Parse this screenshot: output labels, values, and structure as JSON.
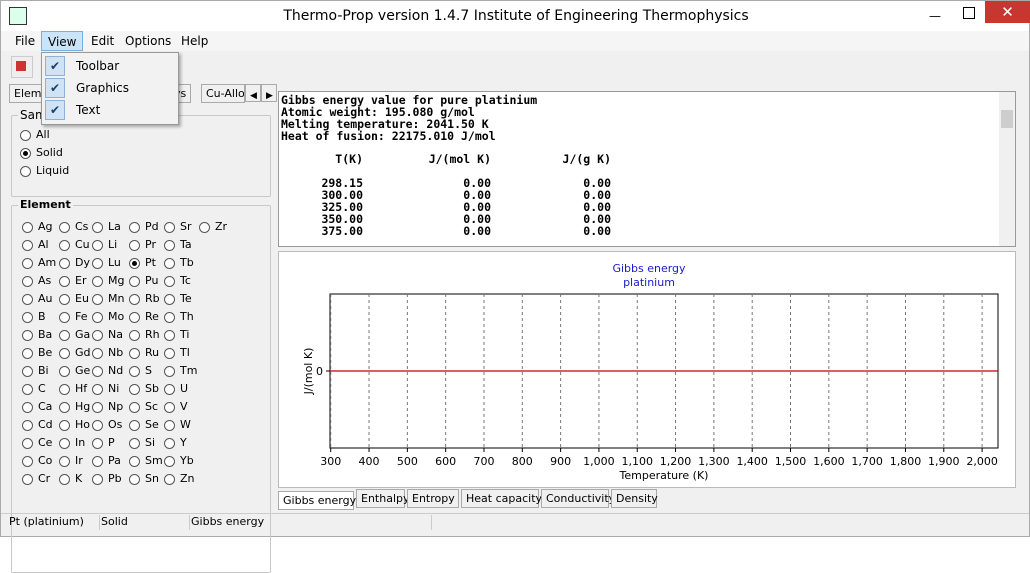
{
  "window": {
    "title": "Thermo-Prop version 1.4.7  Institute of Engineering Thermophysics"
  },
  "menu": [
    "File",
    "View",
    "Edit",
    "Options",
    "Help"
  ],
  "view_menu": [
    "Toolbar",
    "Graphics",
    "Text"
  ],
  "left_tabs": [
    "Eleme",
    "ys",
    "Cu-Allo"
  ],
  "sample": {
    "title": "Sam",
    "options": [
      "All",
      "Solid",
      "Liquid"
    ]
  },
  "element": {
    "title": "Element",
    "rows": [
      [
        "Ag",
        "Cs",
        "La",
        "Pd",
        "Sr",
        "Zr"
      ],
      [
        "Al",
        "Cu",
        "Li",
        "Pr",
        "Ta"
      ],
      [
        "Am",
        "Dy",
        "Lu",
        "Pt",
        "Tb"
      ],
      [
        "As",
        "Er",
        "Mg",
        "Pu",
        "Tc"
      ],
      [
        "Au",
        "Eu",
        "Mn",
        "Rb",
        "Te"
      ],
      [
        "B",
        "Fe",
        "Mo",
        "Re",
        "Th"
      ],
      [
        "Ba",
        "Ga",
        "Na",
        "Rh",
        "Ti"
      ],
      [
        "Be",
        "Gd",
        "Nb",
        "Ru",
        "Tl"
      ],
      [
        "Bi",
        "Ge",
        "Nd",
        "S",
        "Tm"
      ],
      [
        "C",
        "Hf",
        "Ni",
        "Sb",
        "U"
      ],
      [
        "Ca",
        "Hg",
        "Np",
        "Sc",
        "V"
      ],
      [
        "Cd",
        "Ho",
        "Os",
        "Se",
        "W"
      ],
      [
        "Ce",
        "In",
        "P",
        "Si",
        "Y"
      ],
      [
        "Co",
        "Ir",
        "Pa",
        "Sm",
        "Yb"
      ],
      [
        "Cr",
        "K",
        "Pb",
        "Sn",
        "Zn"
      ]
    ]
  },
  "text": {
    "header_lines": [
      "Gibbs energy value for pure platinium",
      "Atomic weight: 195.080 g/mol",
      "Melting temperature: 2041.50 K",
      "Heat of fusion: 22175.010 J/mol"
    ],
    "columns": [
      "T(K)",
      "J/(mol K)",
      "J/(g K)"
    ],
    "rows": [
      [
        "298.15",
        "0.00",
        "0.00"
      ],
      [
        "300.00",
        "0.00",
        "0.00"
      ],
      [
        "325.00",
        "0.00",
        "0.00"
      ],
      [
        "350.00",
        "0.00",
        "0.00"
      ],
      [
        "375.00",
        "0.00",
        "0.00"
      ]
    ]
  },
  "chart_data": {
    "type": "line",
    "title": "Gibbs energy",
    "subtitle": "platinium",
    "x_label": "Temperature (K)",
    "y_label": "J/(mol K)",
    "x": [
      298.15,
      2041.5
    ],
    "series": [
      {
        "name": "platinium",
        "color": "#c00000",
        "values": [
          0,
          0
        ]
      }
    ],
    "xlim": [
      298.15,
      2041.5
    ],
    "ylim": [
      -1,
      1
    ],
    "xticks": [
      300,
      400,
      500,
      600,
      700,
      800,
      900,
      {
        "value": 1000,
        "label": "1,000"
      },
      {
        "value": 1100,
        "label": "1,100"
      },
      {
        "value": 1200,
        "label": "1,200"
      },
      {
        "value": 1300,
        "label": "1,300"
      },
      {
        "value": 1400,
        "label": "1,400"
      },
      {
        "value": 1500,
        "label": "1,500"
      },
      {
        "value": 1600,
        "label": "1,600"
      },
      {
        "value": 1700,
        "label": "1,700"
      },
      {
        "value": 1800,
        "label": "1,800"
      },
      {
        "value": 1900,
        "label": "1,900"
      },
      {
        "value": 2000,
        "label": "2,000"
      }
    ],
    "yticks": [
      0
    ],
    "grid": true
  },
  "bottom_tabs": [
    "Gibbs energy",
    "Enthalpy",
    "Entropy",
    "Heat capacity",
    "Conductivity",
    "Density"
  ],
  "status": [
    "Pt (platinium)",
    "Solid",
    "Gibbs energy"
  ]
}
